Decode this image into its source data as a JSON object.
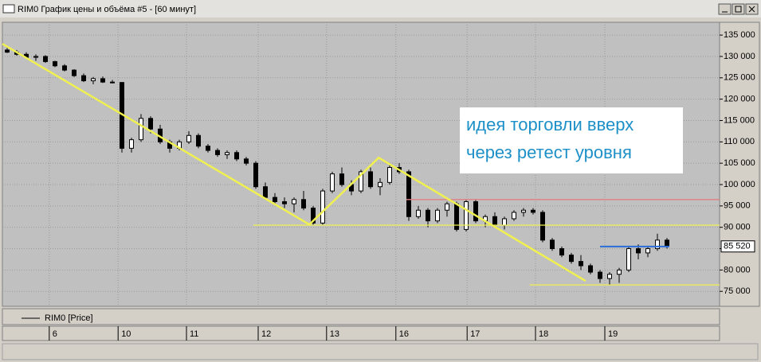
{
  "window_title": "RIM0 График цены и объёма #5 - [60 минут]",
  "chart_data": {
    "type": "candlestick",
    "series_name": "RIM0 [Price]",
    "x": [
      1,
      3,
      5,
      7,
      9,
      11,
      13,
      15,
      17,
      19,
      21,
      23,
      25,
      27,
      29,
      31,
      33,
      35,
      37,
      39,
      41,
      43,
      45,
      47,
      49,
      51,
      53,
      55,
      57,
      59,
      61,
      63,
      65,
      67,
      69,
      71,
      73,
      75,
      77,
      79,
      81,
      83,
      85,
      87,
      89,
      91,
      93,
      95,
      97,
      99,
      101,
      103,
      105,
      107,
      109,
      111,
      113,
      115,
      117,
      119,
      121,
      123,
      125,
      127,
      129,
      131,
      133,
      135,
      137,
      139
    ],
    "open": [
      131500,
      131000,
      130500,
      129800,
      130000,
      128800,
      127800,
      126800,
      125500,
      124300,
      124800,
      124000,
      123900,
      108500,
      110500,
      115500,
      113000,
      110000,
      108500,
      110000,
      111500,
      109000,
      108000,
      107000,
      107500,
      106000,
      105000,
      99500,
      97000,
      96000,
      95500,
      96500,
      94500,
      91000,
      98500,
      102500,
      100000,
      98500,
      103000,
      99500,
      100500,
      104000,
      103000,
      92500,
      94000,
      91500,
      94000,
      95500,
      89500,
      96000,
      91500,
      92500,
      90500,
      92000,
      93500,
      94000,
      93500,
      87000,
      85000,
      83500,
      82000,
      81000,
      79500,
      78000,
      79000,
      80000,
      85000,
      84000,
      85000,
      87000
    ],
    "high": [
      132000,
      131500,
      131000,
      130500,
      130300,
      129000,
      128200,
      127000,
      126000,
      125200,
      125300,
      124500,
      124000,
      111000,
      116500,
      116000,
      114000,
      110500,
      110500,
      112500,
      112000,
      109500,
      108500,
      108000,
      108000,
      106500,
      105500,
      100500,
      98000,
      97000,
      97000,
      98500,
      95000,
      99000,
      103000,
      104000,
      101000,
      103500,
      104000,
      101500,
      104500,
      105000,
      103500,
      95000,
      94500,
      94500,
      96000,
      96000,
      96500,
      96500,
      93000,
      93500,
      92500,
      94000,
      94500,
      94500,
      94000,
      87500,
      85500,
      84000,
      83500,
      81500,
      80000,
      79500,
      80500,
      85500,
      86000,
      85500,
      88500,
      87500
    ],
    "low": [
      130800,
      130200,
      129500,
      129000,
      128500,
      127500,
      126500,
      125200,
      124000,
      123500,
      123800,
      123700,
      107500,
      107500,
      110000,
      112000,
      109500,
      107500,
      108000,
      109500,
      108500,
      107500,
      106500,
      106000,
      105500,
      104500,
      99000,
      96500,
      95500,
      94500,
      93500,
      94000,
      90500,
      90500,
      98000,
      99500,
      97500,
      98000,
      99000,
      97500,
      100000,
      102500,
      91500,
      92000,
      90000,
      91000,
      92500,
      89000,
      89000,
      91000,
      90000,
      90000,
      89500,
      91500,
      92500,
      93000,
      86500,
      84500,
      83000,
      81500,
      80000,
      79000,
      77000,
      76500,
      77000,
      79500,
      82500,
      83000,
      84500,
      85000
    ],
    "close": [
      131000,
      130500,
      129800,
      130000,
      128800,
      127800,
      126800,
      125500,
      124300,
      124800,
      124000,
      123900,
      108500,
      110500,
      115500,
      113000,
      110000,
      108500,
      110000,
      111500,
      109000,
      108000,
      107000,
      107500,
      106000,
      105000,
      99500,
      97000,
      96000,
      95500,
      96500,
      94500,
      91000,
      98500,
      102500,
      100000,
      98500,
      103000,
      99500,
      100500,
      104000,
      103000,
      92500,
      94000,
      91500,
      94000,
      95500,
      89500,
      96000,
      91500,
      92500,
      90500,
      92000,
      93500,
      94000,
      93500,
      87000,
      85000,
      83500,
      82000,
      81000,
      79500,
      78000,
      79000,
      80000,
      85000,
      84000,
      85000,
      87000,
      85520
    ],
    "xlim": [
      0,
      150
    ],
    "xticks": [
      {
        "value": 9.8,
        "label": "6"
      },
      {
        "value": 24.2,
        "label": "10"
      },
      {
        "value": 38.5,
        "label": "11"
      },
      {
        "value": 53.5,
        "label": "12"
      },
      {
        "value": 67.8,
        "label": "13"
      },
      {
        "value": 82.3,
        "label": "16"
      },
      {
        "value": 97.2,
        "label": "17"
      },
      {
        "value": 111.5,
        "label": "18"
      },
      {
        "value": 126,
        "label": "19"
      }
    ],
    "ylim": [
      71500,
      138000
    ],
    "yticks": [
      {
        "value": 135000,
        "label": "135 000"
      },
      {
        "value": 130000,
        "label": "130 000"
      },
      {
        "value": 125000,
        "label": "125 000"
      },
      {
        "value": 120000,
        "label": "120 000"
      },
      {
        "value": 115000,
        "label": "115 000"
      },
      {
        "value": 110000,
        "label": "110 000"
      },
      {
        "value": 105000,
        "label": "105 000"
      },
      {
        "value": 100000,
        "label": "100 000"
      },
      {
        "value": 95000,
        "label": "95 000"
      },
      {
        "value": 90000,
        "label": "90 000"
      },
      {
        "value": 85000,
        "label": "85 000"
      },
      {
        "value": 80000,
        "label": "80 000"
      },
      {
        "value": 75000,
        "label": "75 000"
      }
    ],
    "last_price": {
      "value": 85520,
      "label": "85 520"
    },
    "grid": true,
    "trend_line": {
      "color": "#f0f050",
      "x": [
        0,
        64.2,
        78.7,
        122
      ],
      "y": [
        132950,
        90650,
        106300,
        77430
      ]
    },
    "levels": [
      {
        "value": 90500,
        "x": [
          52.5,
          150
        ],
        "color": "#f0f050"
      },
      {
        "value": 76500,
        "x": [
          110.3,
          150
        ],
        "color": "#f0f050"
      },
      {
        "value": 96500,
        "x": [
          84.5,
          150
        ],
        "color": "#e08080"
      },
      {
        "value": 85500,
        "x": [
          125,
          139.5
        ],
        "color": "#2a6fd8"
      }
    ],
    "annotation": [
      "идея торговли вверх",
      "через ретест уровня"
    ]
  }
}
